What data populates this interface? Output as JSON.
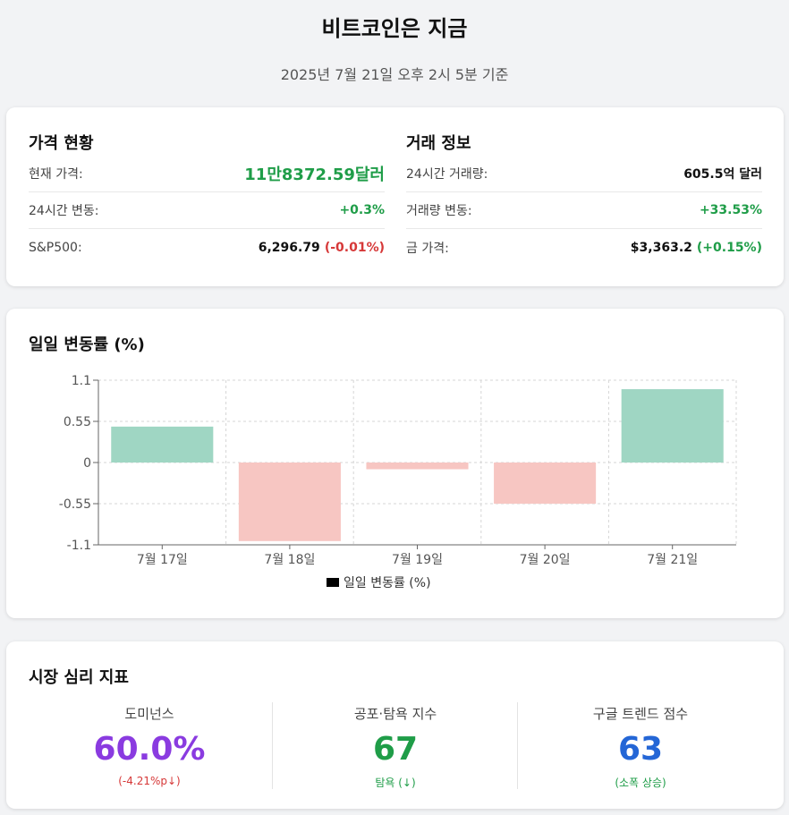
{
  "header": {
    "title": "비트코인은 지금",
    "subtitle": "2025년 7월 21일 오후 2시 5분 기준"
  },
  "price": {
    "title": "가격 현황",
    "rows": [
      {
        "label": "현재 가격:",
        "value": "11만8372.59달러"
      },
      {
        "label": "24시간 변동:",
        "value": "+0.3%"
      },
      {
        "label": "S&P500:",
        "value": "6,296.79",
        "change": "(-0.01%)"
      }
    ]
  },
  "trade": {
    "title": "거래 정보",
    "rows": [
      {
        "label": "24시간 거래량:",
        "value": "605.5억 달러"
      },
      {
        "label": "거래량 변동:",
        "value": "+33.53%"
      },
      {
        "label": "금 가격:",
        "value": "$3,363.2",
        "change": "(+0.15%)"
      }
    ]
  },
  "chart_card": {
    "title": "일일 변동률 (%)"
  },
  "chart_data": {
    "type": "bar",
    "title": "일일 변동률 (%)",
    "categories": [
      "7월 17일",
      "7월 18일",
      "7월 19일",
      "7월 20일",
      "7월 21일"
    ],
    "series": [
      {
        "name": "일일 변동률 (%)",
        "values": [
          0.48,
          -1.05,
          -0.09,
          -0.55,
          0.98
        ]
      }
    ],
    "ylim": [
      -1.1,
      1.1
    ],
    "yticks": [
      "1.1",
      "0.55",
      "0",
      "-0.55",
      "-1.1"
    ],
    "ytick_values": [
      1.1,
      0.55,
      0,
      -0.55,
      -1.1
    ],
    "grid": true,
    "legend": "bottom",
    "colors": {
      "positive": "#9fd6c3",
      "negative": "#f7c6c2",
      "legend_swatch": "#000000"
    }
  },
  "sentiment": {
    "title": "시장 심리 지표",
    "items": [
      {
        "label": "도미넌스",
        "value": "60.0%",
        "note": "(-4.21%p↓)",
        "value_color": "#8a3be0",
        "note_color": "#d63838"
      },
      {
        "label": "공포·탐욕 지수",
        "value": "67",
        "note": "탐욕 (↓)",
        "value_color": "#1f9d48",
        "note_color": "#1f9d48"
      },
      {
        "label": "구글 트렌드 점수",
        "value": "63",
        "note": "(소폭 상승)",
        "value_color": "#2466d6",
        "note_color": "#1f9d48"
      }
    ]
  }
}
